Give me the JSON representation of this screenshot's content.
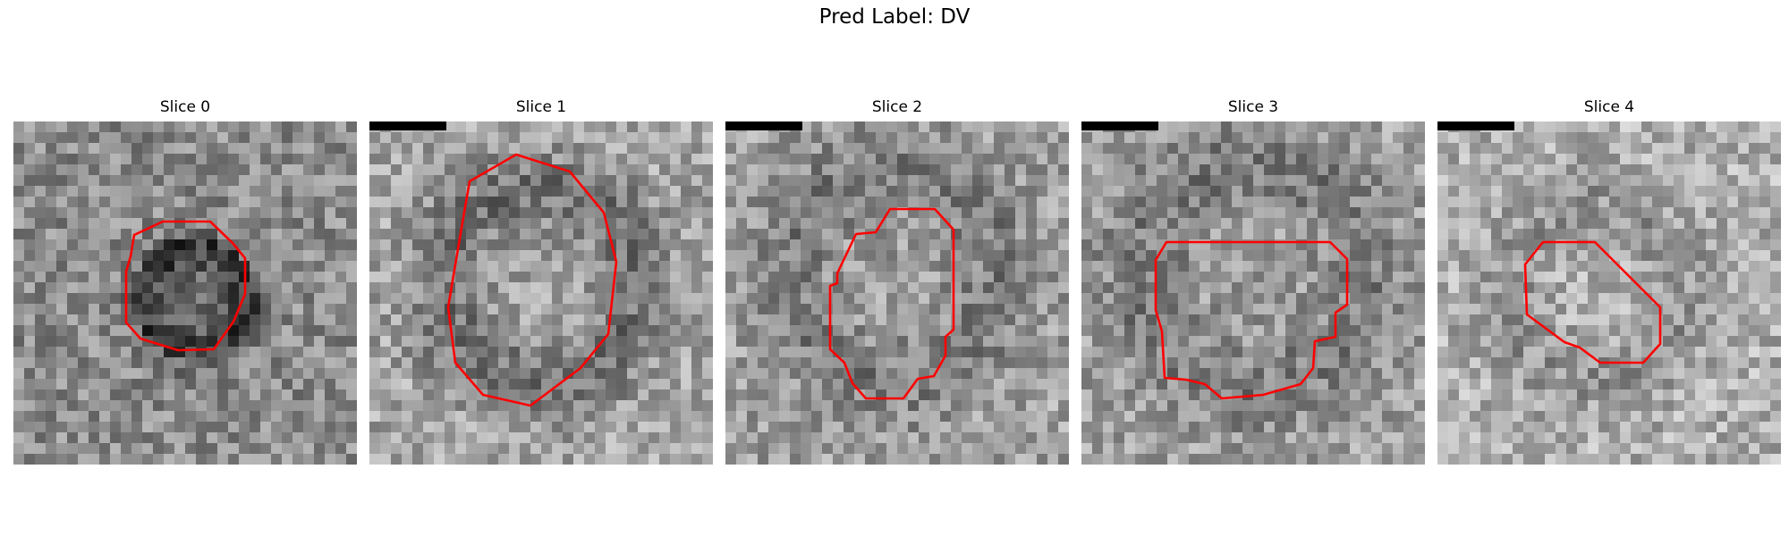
{
  "figure": {
    "title": "Pred Label: DV"
  },
  "panels": [
    {
      "title": "Slice 0",
      "has_scalebar": false,
      "base_gray": 140,
      "dark_center": [
        0.53,
        0.52
      ],
      "dark_radius": 0.18,
      "dark_strength": 45
    },
    {
      "title": "Slice 1",
      "has_scalebar": true,
      "base_gray": 165,
      "dark_center": [
        0.5,
        0.48
      ],
      "dark_radius": 0.33,
      "dark_strength": 50
    },
    {
      "title": "Slice 2",
      "has_scalebar": true,
      "base_gray": 160,
      "dark_center": [
        0.48,
        0.45
      ],
      "dark_radius": 0.36,
      "dark_strength": 35
    },
    {
      "title": "Slice 3",
      "has_scalebar": true,
      "base_gray": 160,
      "dark_center": [
        0.5,
        0.45
      ],
      "dark_radius": 0.38,
      "dark_strength": 35
    },
    {
      "title": "Slice 4",
      "has_scalebar": true,
      "base_gray": 175,
      "dark_center": [
        0.45,
        0.5
      ],
      "dark_radius": 0.3,
      "dark_strength": 25
    }
  ],
  "colors": {
    "contour": "#ff0000",
    "scalebar": "#000000"
  }
}
